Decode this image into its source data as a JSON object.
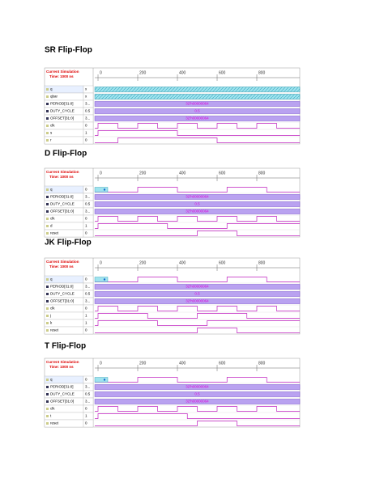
{
  "sections": [
    {
      "title": "SR Flip-Flop",
      "sim_label": "Current Simulation",
      "sim_time": "Time: 1000 ns",
      "ticks": [
        "0",
        "200",
        "400",
        "600",
        "800"
      ],
      "rows": [
        {
          "name": "q",
          "value": "x"
        },
        {
          "name": "qbar",
          "value": "x"
        },
        {
          "name": "PERIOD[31:0]",
          "value": "3...",
          "wave_label": "32'h00000064"
        },
        {
          "name": "DUTY_CYCLE",
          "value": "0.5",
          "wave_label": "0.5"
        },
        {
          "name": "OFFSET[31:0]",
          "value": "3...",
          "wave_label": "32'h00000064"
        },
        {
          "name": "clk",
          "value": "0"
        },
        {
          "name": "s",
          "value": "1"
        },
        {
          "name": "r",
          "value": "0"
        }
      ]
    },
    {
      "title": "D Flip-Flop",
      "sim_label": "Current Simulation",
      "sim_time": "Time: 1000 ns",
      "ticks": [
        "0",
        "200",
        "400",
        "600",
        "800"
      ],
      "rows": [
        {
          "name": "q",
          "value": "0"
        },
        {
          "name": "PERIOD[31:0]",
          "value": "3...",
          "wave_label": "32'h00000064"
        },
        {
          "name": "DUTY_CYCLE",
          "value": "0.5",
          "wave_label": "0.5"
        },
        {
          "name": "OFFSET[31:0]",
          "value": "3...",
          "wave_label": "32'h00000064"
        },
        {
          "name": "clk",
          "value": "0"
        },
        {
          "name": "d",
          "value": "1"
        },
        {
          "name": "reset",
          "value": "0"
        }
      ]
    },
    {
      "title": "JK Flip-Flop",
      "sim_label": "Current Simulation",
      "sim_time": "Time: 1000 ns",
      "ticks": [
        "0",
        "200",
        "400",
        "600",
        "800"
      ],
      "rows": [
        {
          "name": "q",
          "value": "0"
        },
        {
          "name": "PERIOD[31:0]",
          "value": "3...",
          "wave_label": "32'h00000064"
        },
        {
          "name": "DUTY_CYCLE",
          "value": "0.5",
          "wave_label": "0.5"
        },
        {
          "name": "OFFSET[31:0]",
          "value": "3...",
          "wave_label": "32'h00000064"
        },
        {
          "name": "clk",
          "value": "0"
        },
        {
          "name": "j",
          "value": "1"
        },
        {
          "name": "k",
          "value": "1"
        },
        {
          "name": "reset",
          "value": "0"
        }
      ]
    },
    {
      "title": "T Flip-Flop",
      "sim_label": "Current Simulation",
      "sim_time": "Time: 1000 ns",
      "ticks": [
        "0",
        "200",
        "400",
        "600",
        "800"
      ],
      "rows": [
        {
          "name": "q",
          "value": "0"
        },
        {
          "name": "PERIOD[31:0]",
          "value": "3...",
          "wave_label": "32'h00000064"
        },
        {
          "name": "DUTY_CYCLE",
          "value": "0.5",
          "wave_label": "0.5"
        },
        {
          "name": "OFFSET[31:0]",
          "value": "3...",
          "wave_label": "32'h00000064"
        },
        {
          "name": "clk",
          "value": "0"
        },
        {
          "name": "t",
          "value": "1"
        },
        {
          "name": "reset",
          "value": "0"
        }
      ]
    }
  ]
}
